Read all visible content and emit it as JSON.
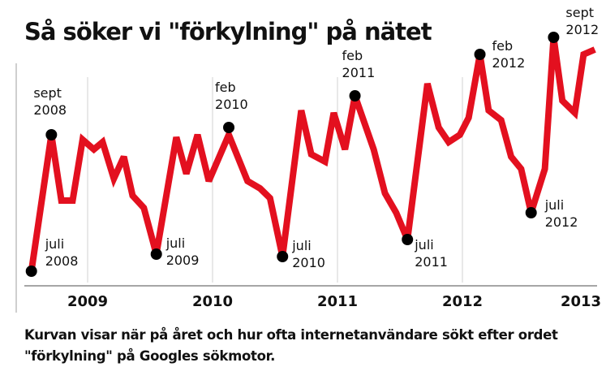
{
  "title": "Så söker vi \"förkylning\" på nätet",
  "caption": "Kurvan visar när på året och hur ofta internetanvändare sökt efter ordet \"förkylning\" på Googles sökmotor.",
  "colors": {
    "line": "#e3101f",
    "dot": "#000000",
    "grid": "#d0d0d0",
    "axis": "#888888"
  },
  "chart_data": {
    "type": "line",
    "title": "Så söker vi \"förkylning\" på nätet",
    "xlabel": "",
    "ylabel": "",
    "y_unit": "relative search interest (estimated index, no axis shown)",
    "xlim": [
      2008.5,
      2013.1
    ],
    "ylim": [
      0,
      100
    ],
    "x_ticks": [
      2009,
      2010,
      2011,
      2012,
      2013
    ],
    "x_tick_labels": [
      "2009",
      "2010",
      "2011",
      "2012",
      "2013"
    ],
    "grid": "vertical at year boundaries",
    "series": [
      {
        "name": "förkylning",
        "x": [
          2008.55,
          2008.71,
          2008.79,
          2008.88,
          2008.96,
          2009.05,
          2009.12,
          2009.21,
          2009.29,
          2009.36,
          2009.45,
          2009.55,
          2009.71,
          2009.79,
          2009.88,
          2009.97,
          2010.13,
          2010.28,
          2010.38,
          2010.46,
          2010.56,
          2010.71,
          2010.79,
          2010.9,
          2010.97,
          2011.06,
          2011.14,
          2011.29,
          2011.38,
          2011.47,
          2011.56,
          2011.72,
          2011.81,
          2011.89,
          2011.98,
          2012.05,
          2012.14,
          2012.21,
          2012.31,
          2012.39,
          2012.47,
          2012.55,
          2012.66,
          2012.73,
          2012.8,
          2012.9,
          2012.97,
          2013.06
        ],
        "values": [
          2,
          58,
          31,
          31,
          56,
          52,
          55,
          40,
          49,
          33,
          28,
          9,
          57,
          42,
          58,
          39,
          58,
          39,
          36,
          32,
          8,
          68,
          50,
          47,
          67,
          52,
          74,
          52,
          34,
          26,
          15,
          79,
          61,
          55,
          58,
          65,
          91,
          68,
          64,
          49,
          44,
          26,
          44,
          98,
          72,
          67,
          91,
          93
        ]
      }
    ],
    "annotations": [
      {
        "x": 2008.55,
        "y": 2,
        "line1": "juli",
        "line2": "2008"
      },
      {
        "x": 2008.71,
        "y": 58,
        "line1": "sept",
        "line2": "2008"
      },
      {
        "x": 2009.55,
        "y": 9,
        "line1": "juli",
        "line2": "2009"
      },
      {
        "x": 2010.13,
        "y": 61,
        "line1": "feb",
        "line2": "2010"
      },
      {
        "x": 2010.56,
        "y": 8,
        "line1": "juli",
        "line2": "2010"
      },
      {
        "x": 2011.14,
        "y": 74,
        "line1": "feb",
        "line2": "2011"
      },
      {
        "x": 2011.56,
        "y": 15,
        "line1": "juli",
        "line2": "2011"
      },
      {
        "x": 2012.14,
        "y": 91,
        "line1": "feb",
        "line2": "2012"
      },
      {
        "x": 2012.55,
        "y": 26,
        "line1": "juli",
        "line2": "2012"
      },
      {
        "x": 2012.73,
        "y": 98,
        "line1": "sept",
        "line2": "2012"
      }
    ]
  }
}
